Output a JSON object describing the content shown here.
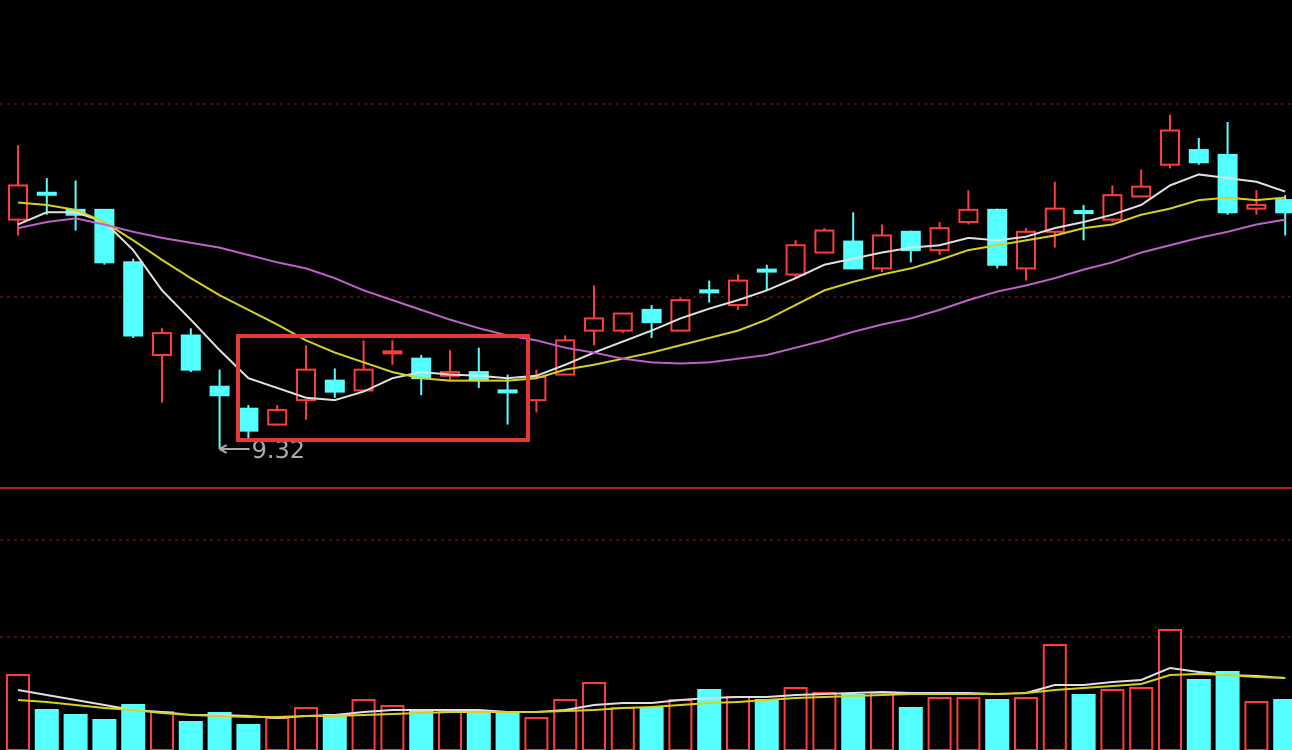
{
  "chart_data": [
    {
      "type": "candlestick",
      "up_color": "#ff3c3c",
      "down_color": "#54ffff",
      "ylim": [
        9.0,
        13.0
      ],
      "open": [
        11.2,
        11.42,
        11.28,
        11.28,
        10.85,
        10.09,
        10.25,
        9.83,
        9.65,
        9.52,
        9.72,
        9.88,
        9.8,
        10.11,
        10.06,
        9.92,
        9.95,
        9.8,
        9.72,
        9.93,
        10.29,
        10.29,
        10.46,
        10.29,
        10.62,
        10.5,
        10.79,
        10.75,
        10.93,
        11.02,
        10.8,
        11.1,
        10.95,
        11.18,
        11.28,
        10.8,
        11.1,
        11.27,
        11.2,
        11.39,
        11.65,
        11.77,
        11.73,
        11.29,
        11.36
      ],
      "high": [
        11.81,
        11.54,
        11.52,
        11.28,
        10.88,
        10.31,
        10.31,
        9.97,
        9.68,
        9.68,
        10.17,
        9.98,
        10.21,
        10.21,
        10.09,
        10.13,
        10.15,
        9.93,
        9.97,
        10.25,
        10.66,
        10.43,
        10.5,
        10.56,
        10.7,
        10.75,
        10.83,
        11.03,
        11.13,
        11.26,
        11.16,
        11.11,
        11.18,
        11.44,
        11.29,
        11.13,
        11.51,
        11.32,
        11.48,
        11.61,
        12.06,
        11.87,
        12.0,
        11.44,
        11.4
      ],
      "low": [
        11.07,
        11.24,
        11.11,
        10.83,
        10.23,
        9.7,
        9.95,
        9.32,
        9.41,
        9.51,
        9.56,
        9.74,
        9.79,
        10.01,
        9.76,
        9.88,
        9.82,
        9.52,
        9.62,
        9.93,
        10.17,
        10.27,
        10.23,
        10.29,
        10.52,
        10.46,
        10.62,
        10.72,
        10.93,
        10.79,
        10.77,
        10.85,
        10.91,
        11.16,
        10.8,
        10.7,
        10.97,
        11.03,
        11.18,
        11.38,
        11.62,
        11.65,
        11.24,
        11.24,
        11.07
      ],
      "close": [
        11.48,
        11.41,
        11.24,
        10.85,
        10.25,
        10.27,
        9.97,
        9.76,
        9.47,
        9.64,
        9.97,
        9.79,
        9.97,
        10.12,
        9.9,
        9.95,
        9.88,
        9.79,
        9.91,
        10.21,
        10.39,
        10.43,
        10.36,
        10.54,
        10.61,
        10.7,
        10.78,
        10.99,
        11.11,
        10.8,
        11.07,
        10.95,
        11.13,
        11.28,
        10.83,
        11.1,
        11.29,
        11.26,
        11.4,
        11.47,
        11.93,
        11.67,
        11.26,
        11.32,
        11.26
      ],
      "min_label_index": 7,
      "series": [
        {
          "color": "#e0e0e0",
          "values": [
            11.16,
            11.26,
            11.26,
            11.18,
            10.95,
            10.62,
            10.38,
            10.13,
            9.9,
            9.82,
            9.74,
            9.72,
            9.79,
            9.9,
            9.95,
            9.93,
            9.92,
            9.9,
            9.92,
            10.01,
            10.11,
            10.2,
            10.29,
            10.39,
            10.47,
            10.54,
            10.62,
            10.72,
            10.83,
            10.88,
            10.93,
            10.97,
            10.99,
            11.05,
            11.03,
            11.06,
            11.13,
            11.18,
            11.24,
            11.32,
            11.48,
            11.57,
            11.54,
            11.51,
            11.43
          ]
        },
        {
          "color": "#d8d020",
          "values": [
            11.34,
            11.32,
            11.28,
            11.18,
            11.03,
            10.87,
            10.72,
            10.58,
            10.46,
            10.34,
            10.21,
            10.11,
            10.03,
            9.95,
            9.9,
            9.88,
            9.88,
            9.88,
            9.9,
            9.97,
            10.01,
            10.06,
            10.11,
            10.17,
            10.23,
            10.29,
            10.38,
            10.5,
            10.62,
            10.69,
            10.75,
            10.8,
            10.87,
            10.95,
            10.99,
            11.03,
            11.07,
            11.13,
            11.16,
            11.24,
            11.29,
            11.36,
            11.38,
            11.36,
            11.38
          ]
        },
        {
          "color": "#c060c8",
          "values": [
            11.13,
            11.18,
            11.21,
            11.16,
            11.1,
            11.05,
            11.01,
            10.97,
            10.91,
            10.85,
            10.8,
            10.72,
            10.62,
            10.54,
            10.46,
            10.38,
            10.31,
            10.25,
            10.21,
            10.15,
            10.11,
            10.06,
            10.03,
            10.02,
            10.03,
            10.06,
            10.09,
            10.15,
            10.21,
            10.28,
            10.34,
            10.39,
            10.46,
            10.54,
            10.61,
            10.66,
            10.72,
            10.79,
            10.85,
            10.93,
            10.99,
            11.05,
            11.1,
            11.16,
            11.2
          ]
        }
      ]
    },
    {
      "type": "bar",
      "ylim": [
        0,
        125
      ],
      "values": [
        75,
        40,
        35,
        30,
        45,
        38,
        28,
        37,
        25,
        32,
        42,
        35,
        50,
        44,
        38,
        38,
        37,
        37,
        32,
        50,
        67,
        42,
        42,
        50,
        60,
        53,
        50,
        62,
        57,
        55,
        57,
        42,
        52,
        52,
        50,
        52,
        105,
        55,
        60,
        62,
        120,
        70,
        78,
        48,
        50
      ],
      "series": [
        {
          "color": "#e0e0e0",
          "values": [
            60,
            55,
            50,
            45,
            40,
            38,
            35,
            35,
            34,
            32,
            34,
            35,
            38,
            40,
            40,
            40,
            40,
            38,
            38,
            40,
            45,
            47,
            47,
            50,
            52,
            53,
            53,
            55,
            56,
            57,
            58,
            57,
            57,
            57,
            56,
            57,
            65,
            65,
            68,
            70,
            82,
            78,
            75,
            74,
            72
          ]
        },
        {
          "color": "#d8d020",
          "values": [
            50,
            48,
            45,
            42,
            40,
            37,
            35,
            34,
            33,
            33,
            34,
            34,
            35,
            36,
            37,
            38,
            38,
            38,
            38,
            39,
            40,
            42,
            43,
            45,
            47,
            48,
            50,
            52,
            53,
            54,
            55,
            56,
            56,
            56,
            56,
            57,
            60,
            62,
            64,
            66,
            75,
            76,
            75,
            73,
            72
          ]
        }
      ]
    }
  ]
}
